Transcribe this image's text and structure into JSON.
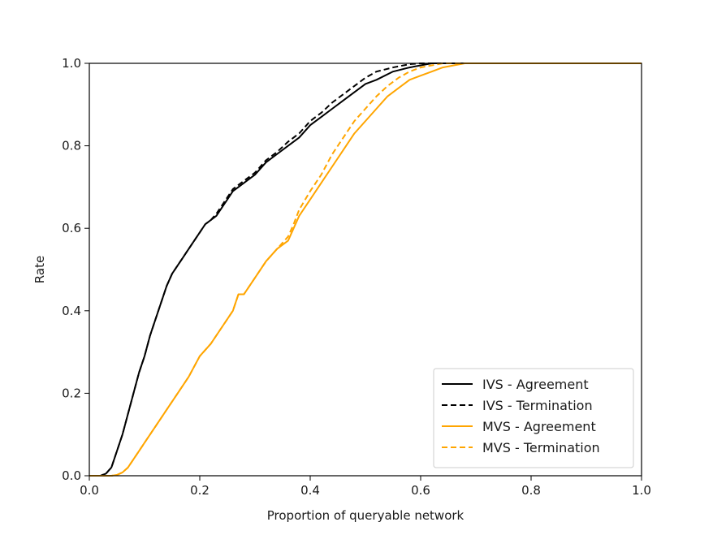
{
  "chart_data": {
    "type": "line",
    "title": "",
    "xlabel": "Proportion of queryable network",
    "ylabel": "Rate",
    "xlim": [
      0.0,
      1.0
    ],
    "ylim": [
      0.0,
      1.0
    ],
    "xticks": [
      "0.0",
      "0.2",
      "0.4",
      "0.6",
      "0.8",
      "1.0"
    ],
    "yticks": [
      "0.0",
      "0.2",
      "0.4",
      "0.6",
      "0.8",
      "1.0"
    ],
    "grid": false,
    "legend_position": "bottom-right",
    "series": [
      {
        "name": "IVS - Agreement",
        "color": "#000000",
        "style": "solid",
        "x": [
          0.0,
          0.02,
          0.03,
          0.04,
          0.05,
          0.06,
          0.07,
          0.08,
          0.09,
          0.1,
          0.11,
          0.12,
          0.13,
          0.14,
          0.15,
          0.16,
          0.17,
          0.18,
          0.19,
          0.2,
          0.21,
          0.22,
          0.23,
          0.24,
          0.25,
          0.26,
          0.27,
          0.28,
          0.3,
          0.32,
          0.34,
          0.36,
          0.38,
          0.4,
          0.42,
          0.44,
          0.46,
          0.48,
          0.5,
          0.52,
          0.55,
          0.58,
          0.6,
          0.62,
          0.65,
          0.7,
          0.8,
          0.9,
          1.0
        ],
        "y": [
          0.0,
          0.0,
          0.005,
          0.02,
          0.06,
          0.1,
          0.15,
          0.2,
          0.25,
          0.29,
          0.34,
          0.38,
          0.42,
          0.46,
          0.49,
          0.51,
          0.53,
          0.55,
          0.57,
          0.59,
          0.61,
          0.62,
          0.63,
          0.65,
          0.67,
          0.69,
          0.7,
          0.71,
          0.73,
          0.76,
          0.78,
          0.8,
          0.82,
          0.85,
          0.87,
          0.89,
          0.91,
          0.93,
          0.95,
          0.96,
          0.98,
          0.99,
          0.995,
          1.0,
          1.0,
          1.0,
          1.0,
          1.0,
          1.0
        ]
      },
      {
        "name": "IVS - Termination",
        "color": "#000000",
        "style": "dashed",
        "x": [
          0.0,
          0.02,
          0.03,
          0.04,
          0.05,
          0.06,
          0.07,
          0.08,
          0.09,
          0.1,
          0.11,
          0.12,
          0.13,
          0.14,
          0.15,
          0.16,
          0.17,
          0.18,
          0.19,
          0.2,
          0.21,
          0.22,
          0.23,
          0.24,
          0.25,
          0.26,
          0.27,
          0.28,
          0.3,
          0.32,
          0.34,
          0.36,
          0.38,
          0.4,
          0.42,
          0.44,
          0.46,
          0.48,
          0.5,
          0.52,
          0.55,
          0.58,
          0.6,
          0.62,
          0.65,
          0.7,
          0.8,
          0.9,
          1.0
        ],
        "y": [
          0.0,
          0.0,
          0.005,
          0.02,
          0.06,
          0.1,
          0.15,
          0.2,
          0.25,
          0.29,
          0.34,
          0.38,
          0.42,
          0.46,
          0.49,
          0.51,
          0.53,
          0.55,
          0.57,
          0.59,
          0.61,
          0.62,
          0.635,
          0.655,
          0.675,
          0.695,
          0.705,
          0.715,
          0.735,
          0.765,
          0.785,
          0.81,
          0.83,
          0.86,
          0.88,
          0.905,
          0.925,
          0.945,
          0.965,
          0.98,
          0.99,
          0.998,
          1.0,
          1.0,
          1.0,
          1.0,
          1.0,
          1.0,
          1.0
        ]
      },
      {
        "name": "MVS - Agreement",
        "color": "#FFA500",
        "style": "solid",
        "x": [
          0.0,
          0.04,
          0.05,
          0.06,
          0.07,
          0.08,
          0.09,
          0.1,
          0.12,
          0.14,
          0.16,
          0.18,
          0.2,
          0.22,
          0.24,
          0.26,
          0.27,
          0.28,
          0.3,
          0.32,
          0.34,
          0.36,
          0.37,
          0.38,
          0.4,
          0.42,
          0.44,
          0.46,
          0.48,
          0.5,
          0.52,
          0.54,
          0.56,
          0.58,
          0.6,
          0.62,
          0.64,
          0.66,
          0.68,
          0.7,
          0.8,
          0.9,
          1.0
        ],
        "y": [
          0.0,
          0.0,
          0.002,
          0.008,
          0.02,
          0.04,
          0.06,
          0.08,
          0.12,
          0.16,
          0.2,
          0.24,
          0.29,
          0.32,
          0.36,
          0.4,
          0.44,
          0.44,
          0.48,
          0.52,
          0.55,
          0.57,
          0.6,
          0.63,
          0.67,
          0.71,
          0.75,
          0.79,
          0.83,
          0.86,
          0.89,
          0.92,
          0.94,
          0.96,
          0.97,
          0.98,
          0.99,
          0.995,
          1.0,
          1.0,
          1.0,
          1.0,
          1.0
        ]
      },
      {
        "name": "MVS - Termination",
        "color": "#FFA500",
        "style": "dashed",
        "x": [
          0.0,
          0.04,
          0.05,
          0.06,
          0.07,
          0.08,
          0.09,
          0.1,
          0.12,
          0.14,
          0.16,
          0.18,
          0.2,
          0.22,
          0.24,
          0.26,
          0.27,
          0.28,
          0.3,
          0.32,
          0.34,
          0.36,
          0.37,
          0.38,
          0.4,
          0.42,
          0.44,
          0.46,
          0.48,
          0.5,
          0.52,
          0.54,
          0.56,
          0.58,
          0.6,
          0.62,
          0.64,
          0.66,
          0.68,
          0.7,
          0.8,
          0.9,
          1.0
        ],
        "y": [
          0.0,
          0.0,
          0.002,
          0.008,
          0.02,
          0.04,
          0.06,
          0.08,
          0.12,
          0.16,
          0.2,
          0.24,
          0.29,
          0.32,
          0.36,
          0.4,
          0.44,
          0.44,
          0.48,
          0.52,
          0.55,
          0.58,
          0.61,
          0.645,
          0.69,
          0.73,
          0.78,
          0.82,
          0.86,
          0.89,
          0.92,
          0.945,
          0.965,
          0.98,
          0.99,
          0.995,
          1.0,
          1.0,
          1.0,
          1.0,
          1.0,
          1.0,
          1.0
        ]
      }
    ]
  }
}
